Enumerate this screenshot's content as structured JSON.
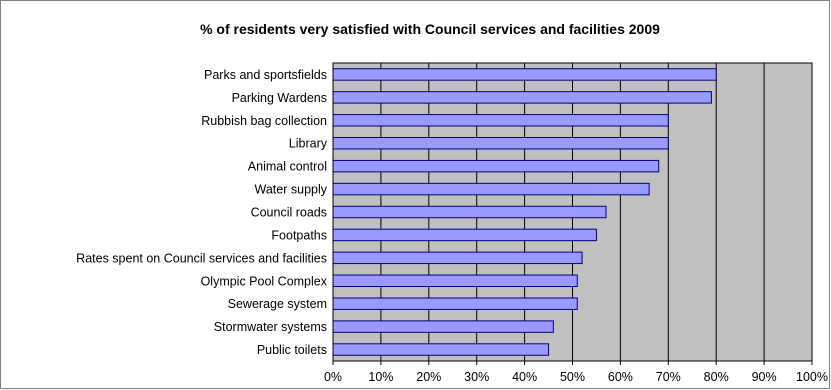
{
  "chart_data": {
    "type": "bar",
    "orientation": "horizontal",
    "title": "% of residents very satisfied with Council services and facilities 2009",
    "xlabel": "",
    "ylabel": "",
    "categories": [
      "Parks and sportsfields",
      "Parking Wardens",
      "Rubbish bag collection",
      "Library",
      "Animal control",
      "Water supply",
      "Council roads",
      "Footpaths",
      "Rates spent on Council services and facilities",
      "Olympic Pool Complex",
      "Sewerage system",
      "Stormwater systems",
      "Public toilets"
    ],
    "values": [
      80,
      79,
      70,
      70,
      68,
      66,
      57,
      55,
      52,
      51,
      51,
      46,
      45
    ],
    "xlim": [
      0,
      100
    ],
    "ticks": [
      "0%",
      "10%",
      "20%",
      "30%",
      "40%",
      "50%",
      "60%",
      "70%",
      "80%",
      "90%",
      "100%"
    ],
    "tick_values": [
      0,
      10,
      20,
      30,
      40,
      50,
      60,
      70,
      80,
      90,
      100
    ],
    "grid": true,
    "legend": "none",
    "colors": {
      "bar_fill": "#9999ff",
      "bar_stroke": "#000080",
      "plot_background": "#c0c0c0",
      "gridline": "#000000",
      "frame": "#000000"
    }
  }
}
